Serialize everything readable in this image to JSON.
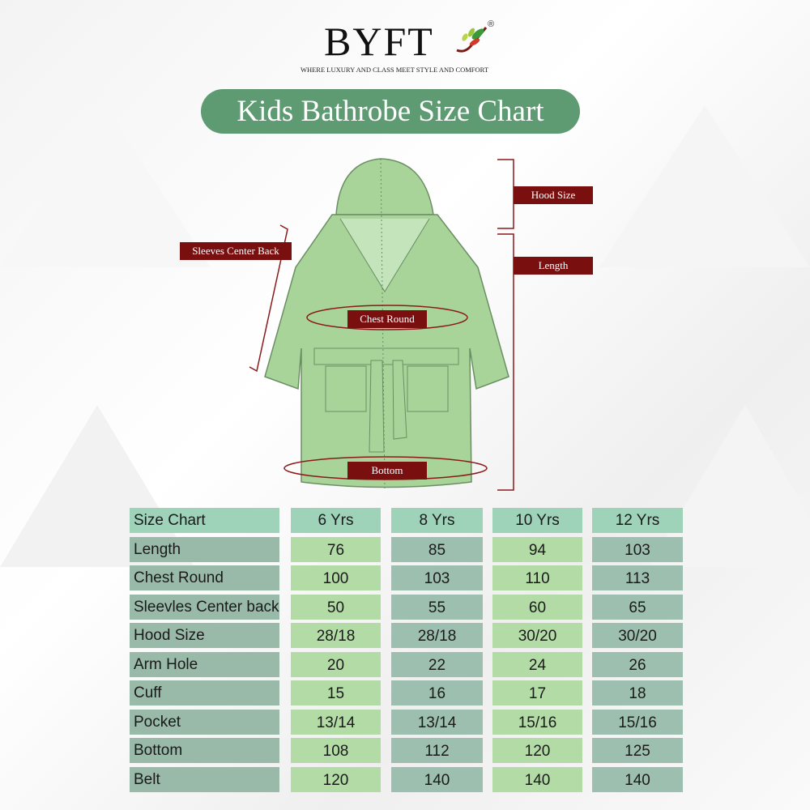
{
  "brand": {
    "name": "BYFT",
    "registered": "®",
    "tagline": "WHERE LUXURY AND CLASS MEET STYLE AND COMFORT"
  },
  "title": "Kids Bathrobe Size Chart",
  "diagram_labels": {
    "hood": "Hood Size",
    "length": "Length",
    "sleeves": "Sleeves Center Back",
    "chest": "Chest Round",
    "bottom": "Bottom"
  },
  "colors": {
    "title_bg": "#5e9a72",
    "label_bg": "#7a0f10",
    "robe": "#a8d49a"
  },
  "table": {
    "headers": [
      "Size Chart",
      "6 Yrs",
      "8 Yrs",
      "10 Yrs",
      "12 Yrs"
    ],
    "rows": [
      [
        "Length",
        "76",
        "85",
        "94",
        "103"
      ],
      [
        "Chest Round",
        "100",
        "103",
        "110",
        "113"
      ],
      [
        "Sleevles Center back",
        "50",
        "55",
        "60",
        "65"
      ],
      [
        "Hood Size",
        "28/18",
        "28/18",
        "30/20",
        "30/20"
      ],
      [
        "Arm Hole",
        "20",
        "22",
        "24",
        "26"
      ],
      [
        "Cuff",
        "15",
        "16",
        "17",
        "18"
      ],
      [
        "Pocket",
        "13/14",
        "13/14",
        "15/16",
        "15/16"
      ],
      [
        "Bottom",
        "108",
        "112",
        "120",
        "125"
      ],
      [
        "Belt",
        "120",
        "140",
        "140",
        "140"
      ]
    ]
  }
}
